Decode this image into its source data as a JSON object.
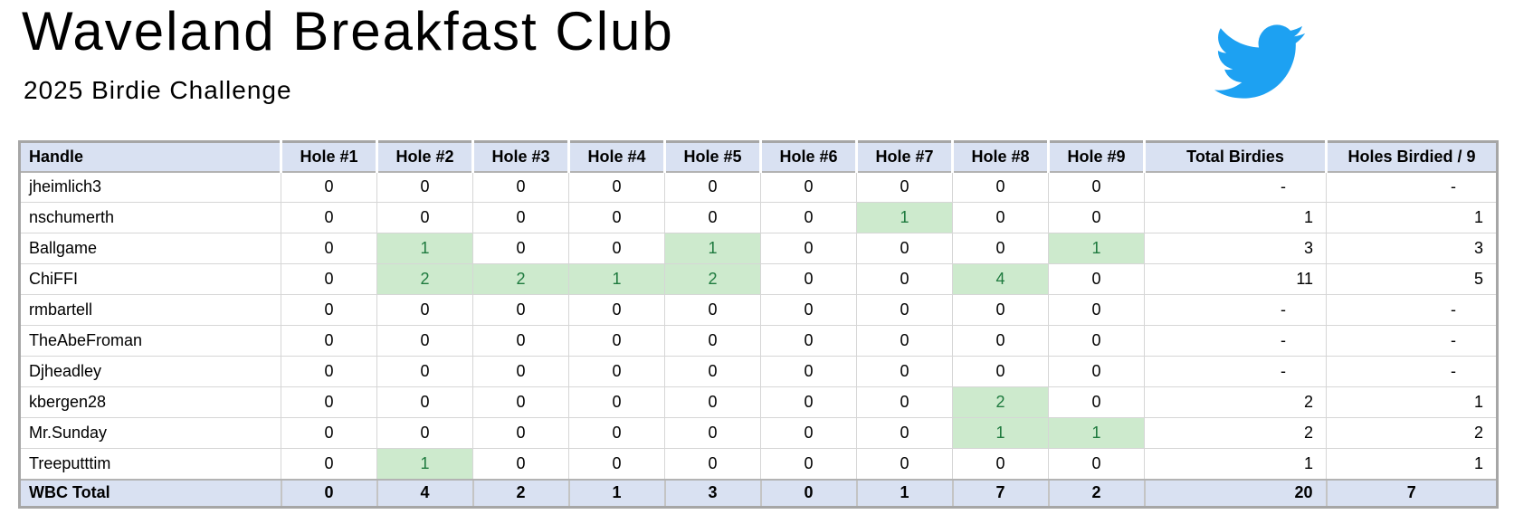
{
  "header": {
    "title": "Waveland Breakfast Club",
    "subtitle": "2025 Birdie Challenge"
  },
  "logo": {
    "icon": "twitter-bird-icon",
    "color": "#1da1f2"
  },
  "table": {
    "columns": [
      "Handle",
      "Hole #1",
      "Hole #2",
      "Hole #3",
      "Hole #4",
      "Hole #5",
      "Hole #6",
      "Hole #7",
      "Hole #8",
      "Hole #9",
      "Total Birdies",
      "Holes Birdied / 9"
    ],
    "rows": [
      {
        "handle": "jheimlich3",
        "holes": [
          0,
          0,
          0,
          0,
          0,
          0,
          0,
          0,
          0
        ],
        "total_birdies": "-",
        "holes_birdied": "-"
      },
      {
        "handle": "nschumerth",
        "holes": [
          0,
          0,
          0,
          0,
          0,
          0,
          1,
          0,
          0
        ],
        "total_birdies": "1",
        "holes_birdied": "1"
      },
      {
        "handle": "Ballgame",
        "holes": [
          0,
          1,
          0,
          0,
          1,
          0,
          0,
          0,
          1
        ],
        "total_birdies": "3",
        "holes_birdied": "3"
      },
      {
        "handle": "ChiFFI",
        "holes": [
          0,
          2,
          2,
          1,
          2,
          0,
          0,
          4,
          0
        ],
        "total_birdies": "11",
        "holes_birdied": "5"
      },
      {
        "handle": "rmbartell",
        "holes": [
          0,
          0,
          0,
          0,
          0,
          0,
          0,
          0,
          0
        ],
        "total_birdies": "-",
        "holes_birdied": "-"
      },
      {
        "handle": "TheAbeFroman",
        "holes": [
          0,
          0,
          0,
          0,
          0,
          0,
          0,
          0,
          0
        ],
        "total_birdies": "-",
        "holes_birdied": "-"
      },
      {
        "handle": "Djheadley",
        "holes": [
          0,
          0,
          0,
          0,
          0,
          0,
          0,
          0,
          0
        ],
        "total_birdies": "-",
        "holes_birdied": "-"
      },
      {
        "handle": "kbergen28",
        "holes": [
          0,
          0,
          0,
          0,
          0,
          0,
          0,
          2,
          0
        ],
        "total_birdies": "2",
        "holes_birdied": "1"
      },
      {
        "handle": "Mr.Sunday",
        "holes": [
          0,
          0,
          0,
          0,
          0,
          0,
          0,
          1,
          1
        ],
        "total_birdies": "2",
        "holes_birdied": "2"
      },
      {
        "handle": "Treeputttim",
        "holes": [
          0,
          1,
          0,
          0,
          0,
          0,
          0,
          0,
          0
        ],
        "total_birdies": "1",
        "holes_birdied": "1"
      }
    ],
    "total_row": {
      "label": "WBC Total",
      "holes": [
        0,
        4,
        2,
        1,
        3,
        0,
        1,
        7,
        2
      ],
      "total_birdies": "20",
      "holes_birdied": "7"
    },
    "colors": {
      "band_bg": "#d9e1f2",
      "birdie_cell_bg": "#cdeacd",
      "birdie_cell_text": "#1e7a3e"
    }
  }
}
